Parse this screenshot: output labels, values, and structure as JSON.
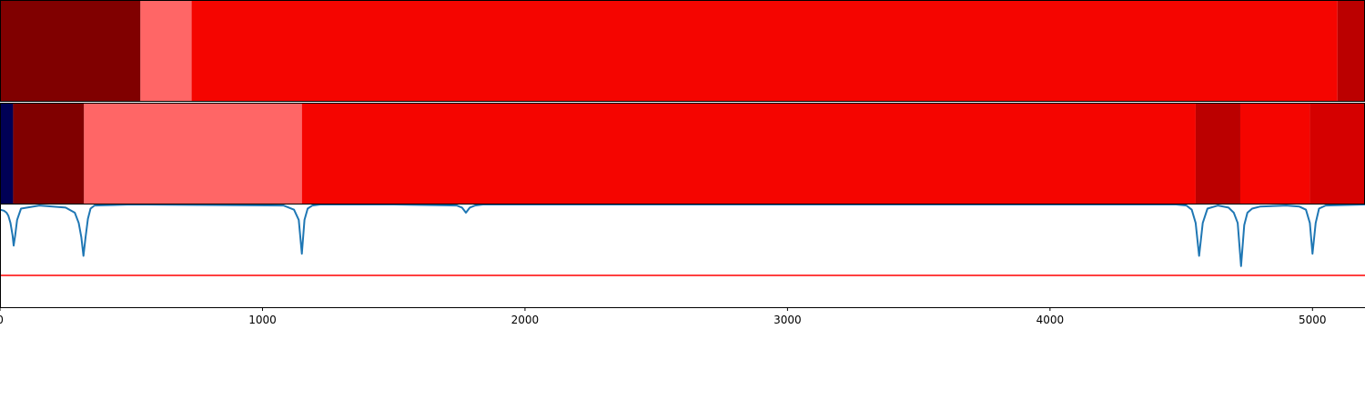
{
  "chart_data": [
    {
      "type": "heatmap",
      "panel": "segmentation-top",
      "x_range": [
        0,
        5200
      ],
      "segments": [
        {
          "start": 0,
          "end": 535,
          "color": "#800000"
        },
        {
          "start": 535,
          "end": 730,
          "color": "#ff6666"
        },
        {
          "start": 730,
          "end": 5095,
          "color": "#f50500"
        },
        {
          "start": 5095,
          "end": 5200,
          "color": "#bb0000"
        }
      ]
    },
    {
      "type": "heatmap",
      "panel": "segmentation-middle",
      "x_range": [
        0,
        5200
      ],
      "segments": [
        {
          "start": 0,
          "end": 50,
          "color": "#000055"
        },
        {
          "start": 50,
          "end": 320,
          "color": "#800000"
        },
        {
          "start": 320,
          "end": 1150,
          "color": "#ff6666"
        },
        {
          "start": 1150,
          "end": 4555,
          "color": "#f50500"
        },
        {
          "start": 4555,
          "end": 4725,
          "color": "#bb0000"
        },
        {
          "start": 4725,
          "end": 4990,
          "color": "#f50500"
        },
        {
          "start": 4990,
          "end": 5200,
          "color": "#d50000"
        }
      ]
    },
    {
      "type": "line",
      "panel": "score",
      "xlim": [
        0,
        5200
      ],
      "ylim": [
        0,
        1
      ],
      "x_ticks": [
        0,
        1000,
        2000,
        3000,
        4000,
        5000
      ],
      "x_tick_labels": [
        "0",
        "1000",
        "2000",
        "3000",
        "4000",
        "5000"
      ],
      "threshold": 0.31,
      "threshold_color": "#ff0000",
      "line_color": "#1f77b4",
      "x": [
        0,
        15,
        25,
        32,
        40,
        48,
        52,
        58,
        65,
        80,
        150,
        250,
        285,
        300,
        310,
        318,
        326,
        335,
        345,
        360,
        500,
        1080,
        1120,
        1138,
        1150,
        1160,
        1172,
        1190,
        1220,
        1500,
        1740,
        1760,
        1775,
        1790,
        1810,
        1840,
        2500,
        3500,
        4480,
        4520,
        4540,
        4555,
        4568,
        4582,
        4600,
        4640,
        4680,
        4700,
        4715,
        4728,
        4740,
        4752,
        4770,
        4800,
        4900,
        4950,
        4975,
        4990,
        5000,
        5012,
        5025,
        5050,
        5200
      ],
      "y": [
        0.95,
        0.94,
        0.92,
        0.89,
        0.82,
        0.7,
        0.6,
        0.7,
        0.85,
        0.96,
        0.99,
        0.97,
        0.92,
        0.82,
        0.68,
        0.5,
        0.68,
        0.86,
        0.96,
        0.99,
        1.0,
        0.99,
        0.95,
        0.85,
        0.52,
        0.85,
        0.96,
        0.99,
        1.0,
        1.0,
        0.99,
        0.97,
        0.92,
        0.97,
        0.99,
        1.0,
        1.0,
        1.0,
        1.0,
        0.99,
        0.95,
        0.82,
        0.5,
        0.82,
        0.96,
        0.99,
        0.97,
        0.92,
        0.82,
        0.4,
        0.8,
        0.92,
        0.96,
        0.98,
        0.99,
        0.98,
        0.95,
        0.82,
        0.52,
        0.82,
        0.96,
        0.99,
        1.0
      ]
    }
  ]
}
